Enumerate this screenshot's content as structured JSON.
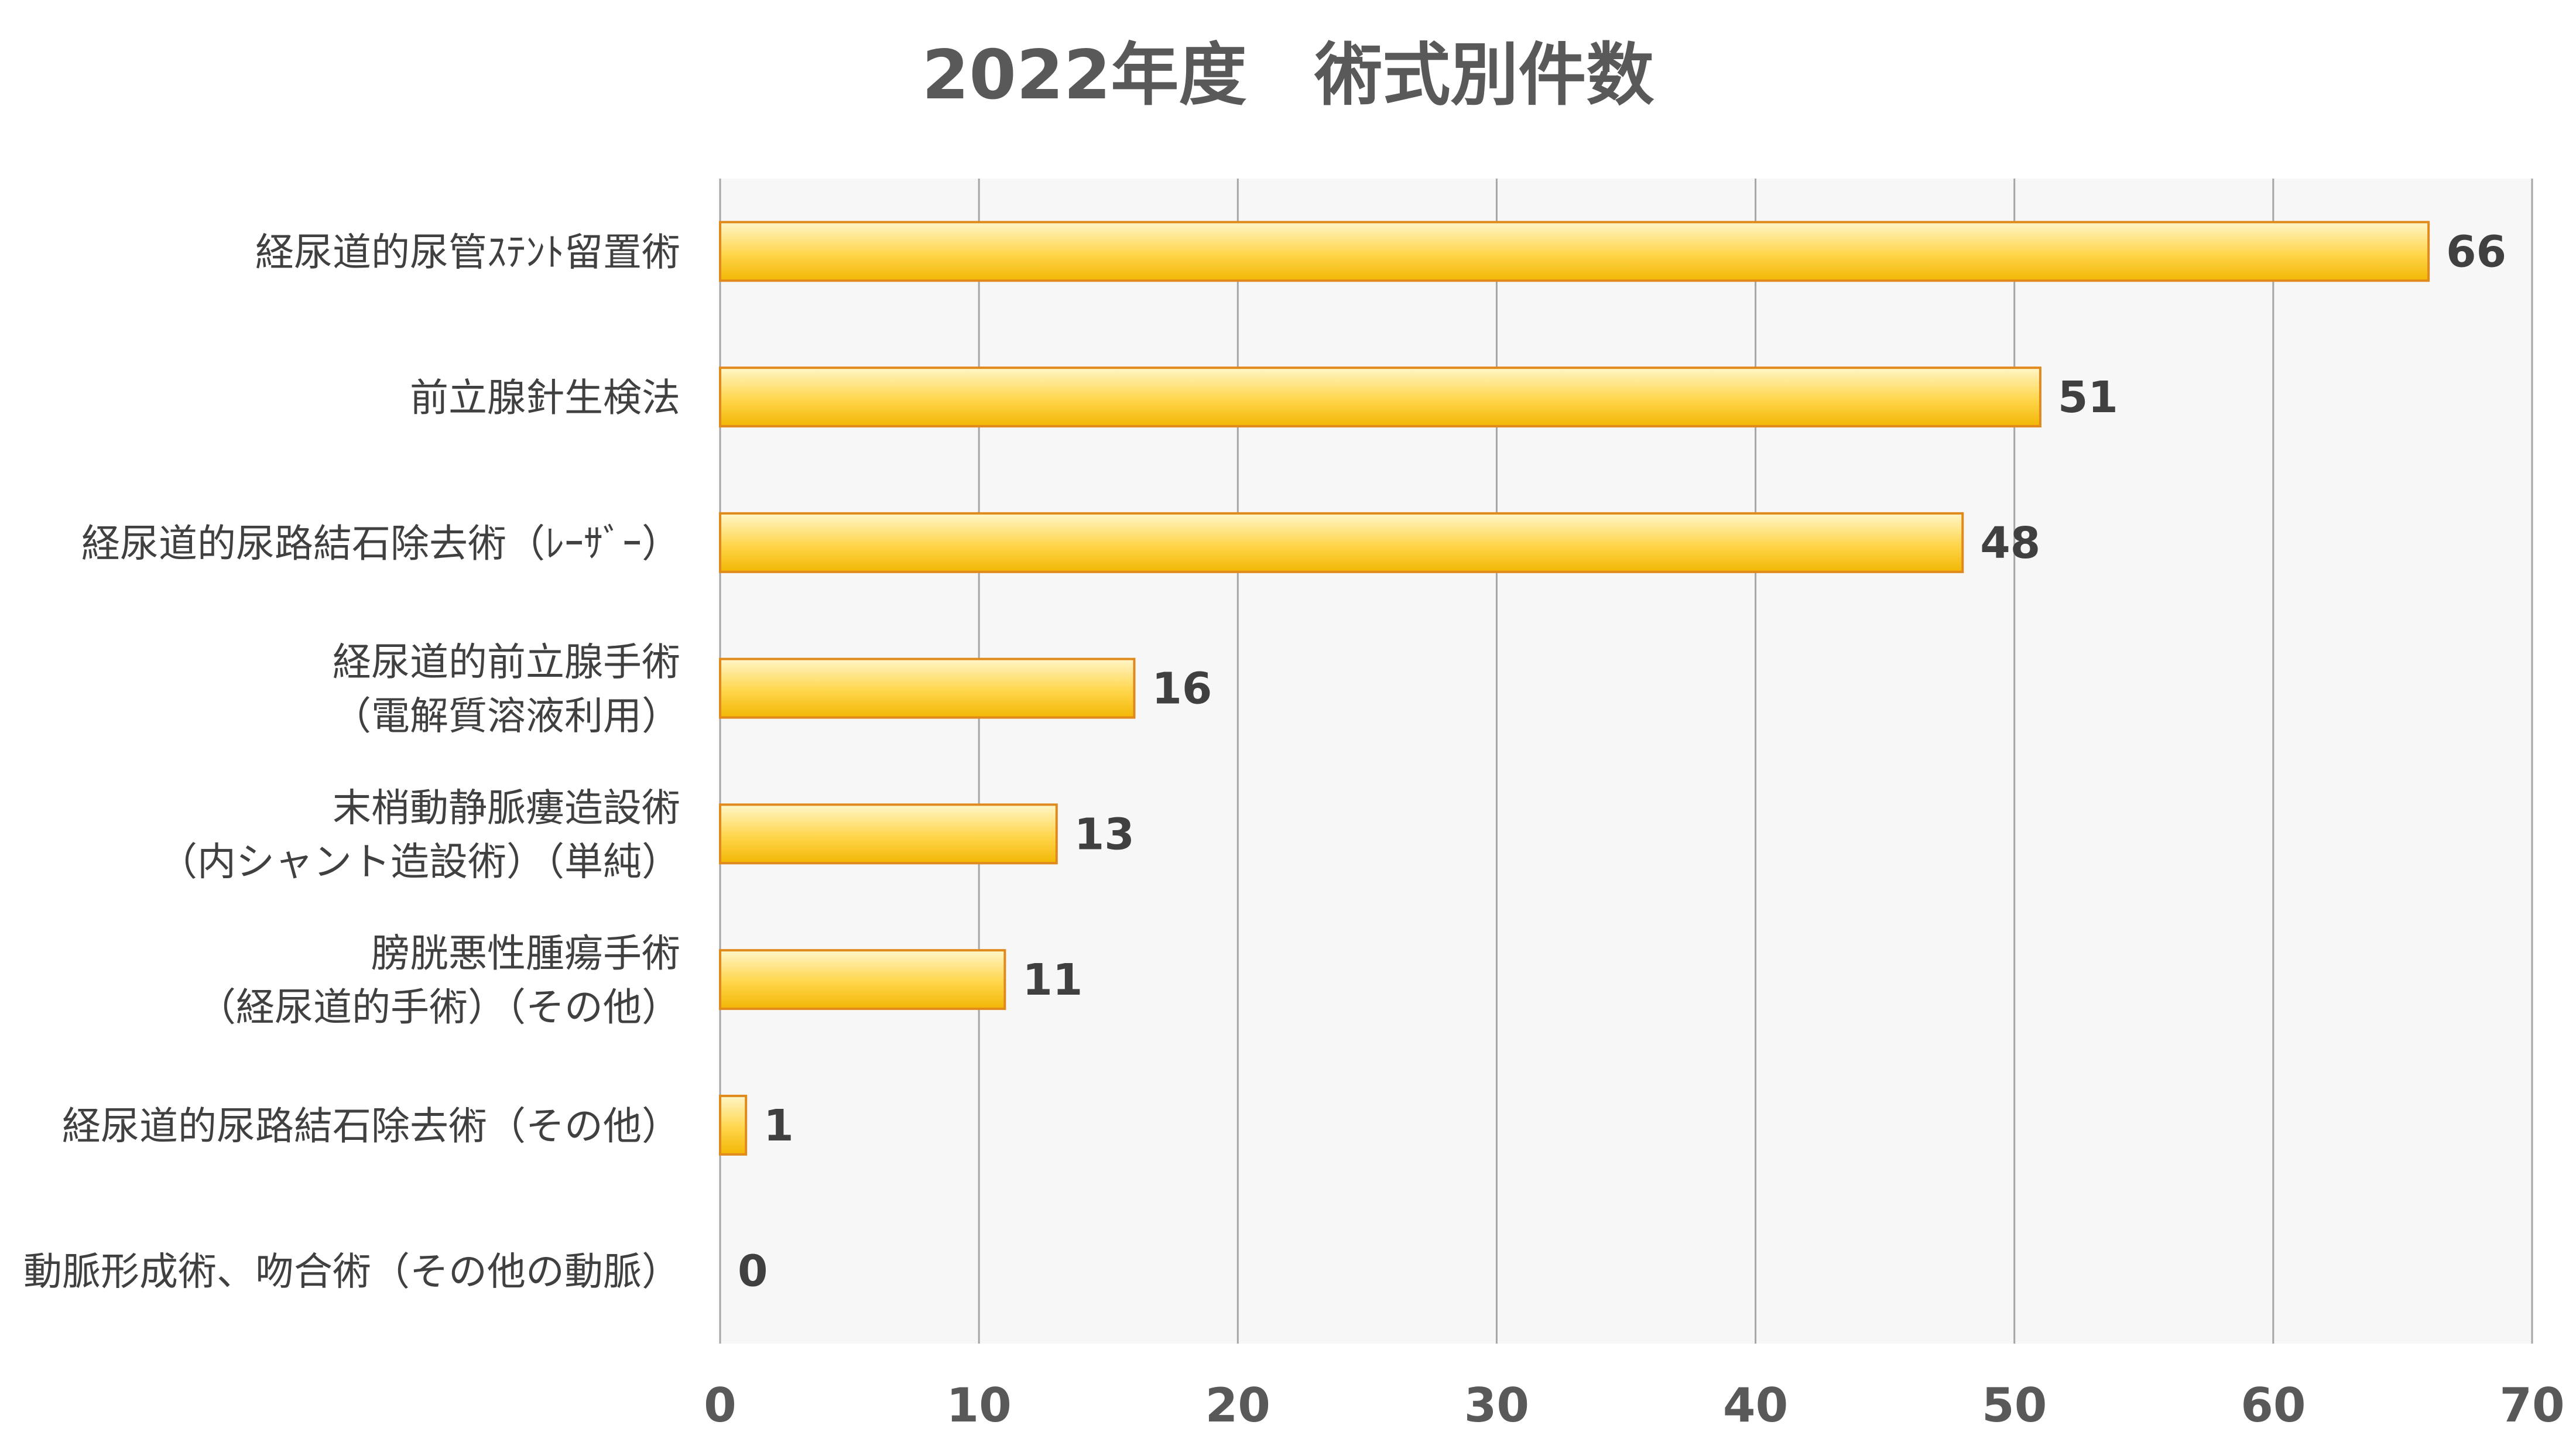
{
  "chart_data": {
    "type": "bar",
    "orientation": "horizontal",
    "title": "2022年度　術式別件数",
    "xlabel": "",
    "ylabel": "",
    "xlim": [
      0,
      70
    ],
    "x_ticks": [
      0,
      10,
      20,
      30,
      40,
      50,
      60,
      70
    ],
    "grid": true,
    "legend": "none",
    "categories": [
      [
        "経尿道的尿管ｽﾃﾝﾄ留置術"
      ],
      [
        "前立腺針生検法"
      ],
      [
        "経尿道的尿路結石除去術（ﾚｰｻﾞｰ）"
      ],
      [
        "経尿道的前立腺手術",
        "（電解質溶液利用）"
      ],
      [
        "末梢動静脈瘻造設術",
        "（内シャント造設術）（単純）"
      ],
      [
        "膀胱悪性腫瘍手術",
        "（経尿道的手術）（その他）"
      ],
      [
        "経尿道的尿路結石除去術（その他）"
      ],
      [
        "動脈形成術、吻合術（その他の動脈）"
      ]
    ],
    "values": [
      66,
      51,
      48,
      16,
      13,
      11,
      1,
      0
    ],
    "colors": {
      "bar_fill_light": "#fff6c8",
      "bar_fill_mid": "#ffd54a",
      "bar_fill_dark": "#f2b705",
      "bar_stroke": "#e08a1e",
      "plot_background": "#f7f7f7",
      "gridline": "#a6a6a6"
    }
  }
}
